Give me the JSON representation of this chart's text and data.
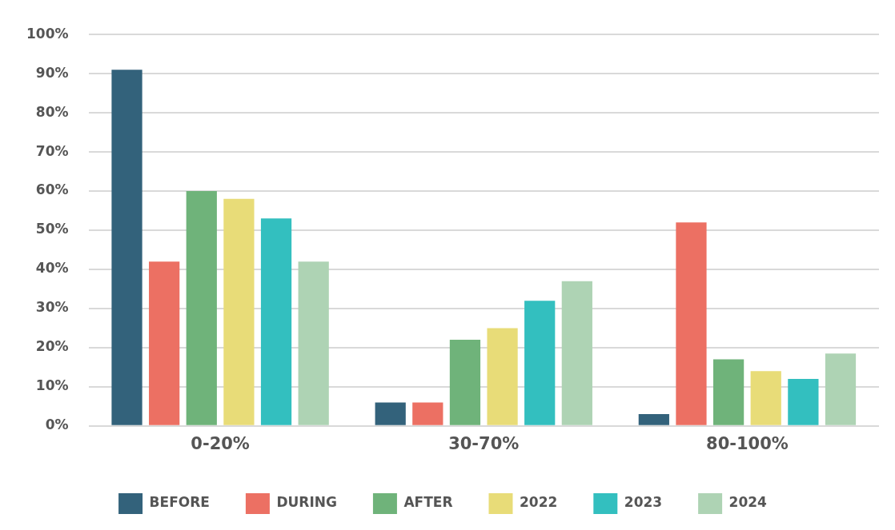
{
  "chart_data": {
    "type": "bar",
    "categories": [
      "0-20%",
      "30-70%",
      "80-100%"
    ],
    "series": [
      {
        "name": "BEFORE",
        "color": "#33627b",
        "values": [
          91,
          6,
          3
        ]
      },
      {
        "name": "DURING",
        "color": "#ec7063",
        "values": [
          42,
          6,
          52
        ]
      },
      {
        "name": "AFTER",
        "color": "#6fb37a",
        "values": [
          60,
          22,
          17
        ]
      },
      {
        "name": "2022",
        "color": "#e8dc78",
        "values": [
          58,
          25,
          14
        ]
      },
      {
        "name": "2023",
        "color": "#33bfbf",
        "values": [
          53,
          32,
          12
        ]
      },
      {
        "name": "2024",
        "color": "#aed3b4",
        "values": [
          42,
          37,
          18.5
        ]
      }
    ],
    "ylim": [
      0,
      100
    ],
    "yticks": [
      {
        "value": 0,
        "label": "0%"
      },
      {
        "value": 10,
        "label": "10%"
      },
      {
        "value": 20,
        "label": "20%"
      },
      {
        "value": 30,
        "label": "30%"
      },
      {
        "value": 40,
        "label": "40%"
      },
      {
        "value": 50,
        "label": "50%"
      },
      {
        "value": 60,
        "label": "60%"
      },
      {
        "value": 70,
        "label": "70%"
      },
      {
        "value": 80,
        "label": "80%"
      },
      {
        "value": 90,
        "label": "90%"
      },
      {
        "value": 100,
        "label": "100%"
      }
    ],
    "grid": "y",
    "legend": "bottom"
  }
}
